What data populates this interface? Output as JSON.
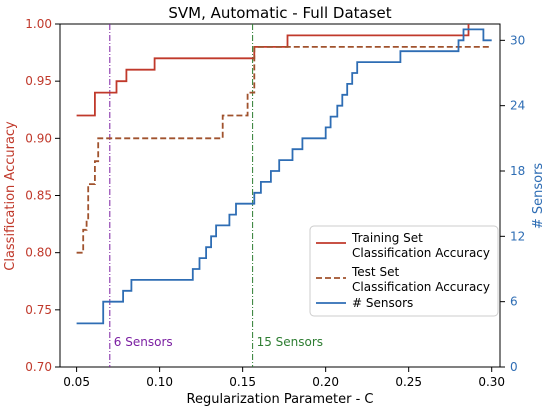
{
  "chart_data": {
    "type": "line",
    "title": "SVM, Automatic - Full Dataset",
    "xlabel": "Regularization Parameter - C",
    "ylabel_left": "Classification Accuracy",
    "ylabel_right": "# Sensors",
    "xlim": [
      0.04,
      0.305
    ],
    "ylim_left": [
      0.7,
      1.0
    ],
    "ylim_right": [
      0,
      31.5
    ],
    "x_ticks": [
      0.05,
      0.1,
      0.15,
      0.2,
      0.25,
      0.3
    ],
    "x_tick_labels": [
      "0.05",
      "0.10",
      "0.15",
      "0.20",
      "0.25",
      "0.30"
    ],
    "y_left_ticks": [
      0.7,
      0.75,
      0.8,
      0.85,
      0.9,
      0.95,
      1.0
    ],
    "y_left_tick_labels": [
      "0.70",
      "0.75",
      "0.80",
      "0.85",
      "0.90",
      "0.95",
      "1.00"
    ],
    "y_right_ticks": [
      0,
      6,
      12,
      18,
      24,
      30
    ],
    "y_right_tick_labels": [
      "0",
      "6",
      "12",
      "18",
      "24",
      "30"
    ],
    "grid": false,
    "legend_position": "lower-right",
    "series": [
      {
        "name": "Training Set\nClassification Accuracy",
        "axis": "left",
        "color": "#c0392b",
        "style": "solid",
        "x": [
          0.05,
          0.058,
          0.061,
          0.07,
          0.074,
          0.077,
          0.08,
          0.082,
          0.085,
          0.094,
          0.097,
          0.155,
          0.157,
          0.17,
          0.177,
          0.284,
          0.286
        ],
        "y": [
          0.92,
          0.92,
          0.94,
          0.94,
          0.95,
          0.95,
          0.96,
          0.96,
          0.96,
          0.96,
          0.97,
          0.97,
          0.98,
          0.98,
          0.99,
          0.99,
          1.0
        ]
      },
      {
        "name": "Test Set\nClassification Accuracy",
        "axis": "left",
        "color": "#a0522d",
        "style": "dashed",
        "x": [
          0.05,
          0.052,
          0.054,
          0.056,
          0.057,
          0.059,
          0.061,
          0.063,
          0.137,
          0.138,
          0.151,
          0.153,
          0.156,
          0.157,
          0.3
        ],
        "y": [
          0.8,
          0.8,
          0.82,
          0.83,
          0.86,
          0.86,
          0.88,
          0.9,
          0.9,
          0.92,
          0.92,
          0.94,
          0.94,
          0.98,
          0.98
        ]
      },
      {
        "name": "# Sensors",
        "axis": "right",
        "color": "#2e6db4",
        "style": "solid",
        "x": [
          0.05,
          0.063,
          0.066,
          0.074,
          0.078,
          0.08,
          0.083,
          0.085,
          0.088,
          0.093,
          0.096,
          0.1,
          0.105,
          0.11,
          0.12,
          0.124,
          0.128,
          0.131,
          0.134,
          0.138,
          0.142,
          0.146,
          0.15,
          0.152,
          0.155,
          0.157,
          0.159,
          0.161,
          0.164,
          0.167,
          0.17,
          0.172,
          0.176,
          0.18,
          0.183,
          0.186,
          0.19,
          0.197,
          0.2,
          0.203,
          0.207,
          0.21,
          0.213,
          0.216,
          0.219,
          0.222,
          0.225,
          0.228,
          0.24,
          0.245,
          0.25,
          0.26,
          0.27,
          0.275,
          0.28,
          0.283,
          0.285,
          0.29,
          0.295,
          0.3
        ],
        "y": [
          4,
          4,
          6,
          6,
          7,
          7,
          8,
          8,
          8,
          8,
          8,
          8,
          8,
          8,
          9,
          10,
          11,
          12,
          13,
          13,
          14,
          15,
          15,
          15,
          15,
          16,
          16,
          17,
          17,
          18,
          18,
          19,
          19,
          20,
          20,
          21,
          21,
          21,
          22,
          23,
          24,
          25,
          26,
          27,
          28,
          28,
          28,
          28,
          28,
          29,
          29,
          29,
          29,
          29,
          30,
          31,
          31,
          31,
          30,
          30
        ]
      }
    ],
    "vlines": [
      {
        "x": 0.07,
        "label": "6 Sensors",
        "color": "#7b1fa2"
      },
      {
        "x": 0.156,
        "label": "15 Sensors",
        "color": "#2e7d32"
      }
    ]
  }
}
